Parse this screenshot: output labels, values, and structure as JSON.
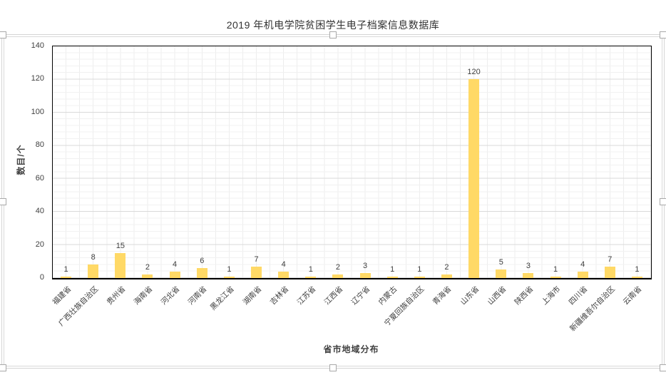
{
  "chart_data": {
    "type": "bar",
    "title": "2019 年机电学院贫困学生电子档案信息数据库",
    "xlabel": "省市地域分布",
    "ylabel": "数目/个",
    "categories": [
      "福建省",
      "广西壮族自治区",
      "贵州省",
      "海南省",
      "河北省",
      "河南省",
      "黑龙江省",
      "湖南省",
      "吉林省",
      "江苏省",
      "江西省",
      "辽宁省",
      "内蒙古",
      "宁夏回族自治区",
      "青海省",
      "山东省",
      "山西省",
      "陕西省",
      "上海市",
      "四川省",
      "新疆维吾尔自治区",
      "云南省"
    ],
    "values": [
      1,
      8,
      15,
      2,
      4,
      6,
      1,
      7,
      4,
      1,
      2,
      3,
      1,
      1,
      2,
      120,
      5,
      3,
      1,
      4,
      7,
      1
    ],
    "ylim": [
      0,
      140
    ],
    "yticks": [
      0,
      20,
      40,
      60,
      80,
      100,
      120,
      140
    ],
    "grid": true,
    "legend": "none",
    "data_labels": true,
    "bar_color": "#FFD966"
  },
  "colors": {
    "bar": "#FFD966",
    "major_gridline": "#d9d9d9",
    "minor_gridline": "#f1f1f1",
    "axis_line": "#000000",
    "text": "#404040",
    "selection_frame": "#d4d4d4"
  }
}
